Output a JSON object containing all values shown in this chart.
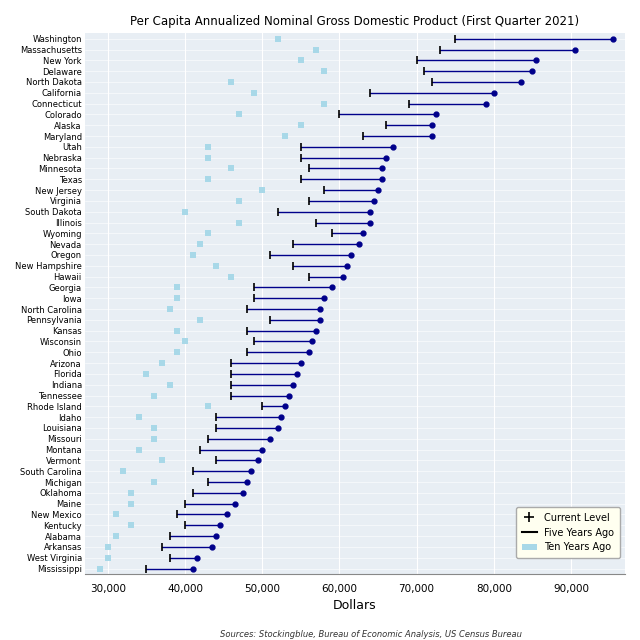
{
  "title": "Per Capita Annualized Nominal Gross Domestic Product (First Quarter 2021)",
  "xlabel": "Dollars",
  "source": "Sources: Stockingblue, Bureau of Economic Analysis, US Census Bureau",
  "xlim": [
    27000,
    97000
  ],
  "xticks": [
    30000,
    40000,
    50000,
    60000,
    70000,
    80000,
    90000
  ],
  "states": [
    "Washington",
    "Massachusetts",
    "New York",
    "Delaware",
    "North Dakota",
    "California",
    "Connecticut",
    "Colorado",
    "Alaska",
    "Maryland",
    "Utah",
    "Nebraska",
    "Minnesota",
    "Texas",
    "New Jersey",
    "Virginia",
    "South Dakota",
    "Illinois",
    "Wyoming",
    "Nevada",
    "Oregon",
    "New Hampshire",
    "Hawaii",
    "Georgia",
    "Iowa",
    "North Carolina",
    "Pennsylvania",
    "Kansas",
    "Wisconsin",
    "Ohio",
    "Arizona",
    "Florida",
    "Indiana",
    "Tennessee",
    "Rhode Island",
    "Idaho",
    "Louisiana",
    "Missouri",
    "Montana",
    "Vermont",
    "South Carolina",
    "Michigan",
    "Oklahoma",
    "Maine",
    "New Mexico",
    "Kentucky",
    "Alabama",
    "Arkansas",
    "West Virginia",
    "Mississippi"
  ],
  "current": [
    95500,
    90500,
    85500,
    85000,
    83500,
    80000,
    79000,
    72500,
    72000,
    72000,
    67000,
    66000,
    65500,
    65500,
    65000,
    64500,
    64000,
    64000,
    63000,
    62500,
    61500,
    61000,
    60500,
    59000,
    58000,
    57500,
    57500,
    57000,
    56500,
    56000,
    55000,
    54500,
    54000,
    53500,
    53000,
    52500,
    52000,
    51000,
    50000,
    49500,
    48500,
    48000,
    47500,
    46500,
    45500,
    44500,
    44000,
    43500,
    41500,
    41000
  ],
  "five_years": [
    75000,
    73000,
    70000,
    71000,
    72000,
    64000,
    69000,
    60000,
    66000,
    63000,
    55000,
    55000,
    56000,
    55000,
    58000,
    56000,
    52000,
    57000,
    59000,
    54000,
    51000,
    54000,
    56000,
    49000,
    49000,
    48000,
    51000,
    48000,
    49000,
    48000,
    46000,
    46000,
    46000,
    46000,
    50000,
    44000,
    44000,
    43000,
    42000,
    44000,
    41000,
    43000,
    41000,
    40000,
    39000,
    40000,
    38000,
    37000,
    38000,
    35000
  ],
  "ten_years": [
    52000,
    57000,
    55000,
    58000,
    46000,
    49000,
    58000,
    47000,
    55000,
    53000,
    43000,
    43000,
    46000,
    43000,
    50000,
    47000,
    40000,
    47000,
    43000,
    42000,
    41000,
    44000,
    46000,
    39000,
    39000,
    38000,
    42000,
    39000,
    40000,
    39000,
    37000,
    35000,
    38000,
    36000,
    43000,
    34000,
    36000,
    36000,
    34000,
    37000,
    32000,
    36000,
    33000,
    33000,
    31000,
    33000,
    31000,
    30000,
    30000,
    29000
  ],
  "bg_color": "#e8eef4",
  "grid_color": "white",
  "line_color": "#00008B",
  "dot_color": "#00008B",
  "ten_yr_color": "#a8d8e8",
  "five_yr_marker_color": "black"
}
